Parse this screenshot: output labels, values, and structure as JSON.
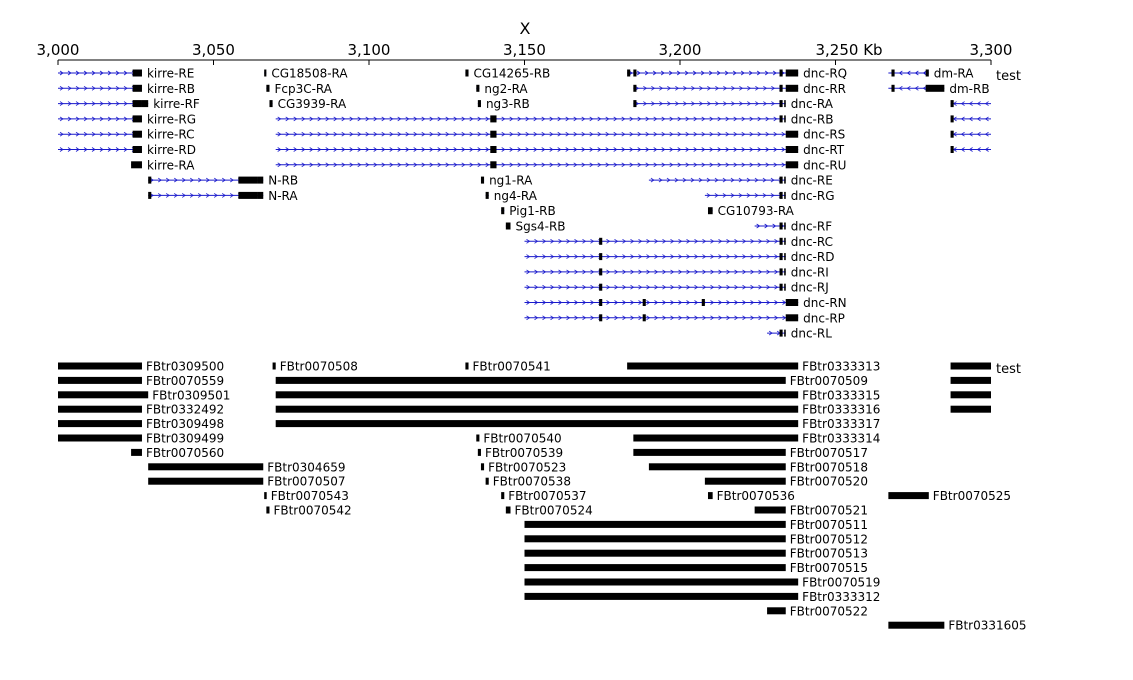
{
  "chromosome": "X",
  "axis": {
    "start_kb": 3000,
    "end_kb": 3300,
    "ticks": [
      {
        "kb": 3000,
        "label": "3,000"
      },
      {
        "kb": 3050,
        "label": "3,050"
      },
      {
        "kb": 3100,
        "label": "3,100"
      },
      {
        "kb": 3150,
        "label": "3,150"
      },
      {
        "kb": 3200,
        "label": "3,200"
      },
      {
        "kb": 3250,
        "label": "3,250 Kb"
      },
      {
        "kb": 3300,
        "label": "3,300"
      }
    ]
  },
  "colors": {
    "intron": "#1a1acc",
    "exon": "#000000",
    "text": "#000000"
  },
  "transcripts_track": {
    "label": "test",
    "features": [
      {
        "name": "kirre-RE",
        "row": 0,
        "start": 3000,
        "end": 3027,
        "strand": "+",
        "exons": [
          [
            3024,
            3027
          ]
        ]
      },
      {
        "name": "kirre-RB",
        "row": 1,
        "start": 3000,
        "end": 3027,
        "strand": "+",
        "exons": [
          [
            3024,
            3027
          ]
        ]
      },
      {
        "name": "kirre-RF",
        "row": 2,
        "start": 3000,
        "end": 3029,
        "strand": "+",
        "exons": [
          [
            3024,
            3027
          ],
          [
            3027,
            3029
          ]
        ]
      },
      {
        "name": "kirre-RG",
        "row": 3,
        "start": 3000,
        "end": 3027,
        "strand": "+",
        "exons": [
          [
            3024,
            3027
          ]
        ]
      },
      {
        "name": "kirre-RC",
        "row": 4,
        "start": 3000,
        "end": 3027,
        "strand": "+",
        "exons": [
          [
            3024,
            3027
          ]
        ]
      },
      {
        "name": "kirre-RD",
        "row": 5,
        "start": 3000,
        "end": 3027,
        "strand": "+",
        "exons": [
          [
            3024,
            3027
          ]
        ]
      },
      {
        "name": "kirre-RA",
        "row": 6,
        "start": 3023.5,
        "end": 3027,
        "strand": "",
        "exons": [
          [
            3023.5,
            3027
          ]
        ]
      },
      {
        "name": "N-RB",
        "row": 7,
        "start": 3029,
        "end": 3066,
        "strand": "+",
        "exons": [
          [
            3029,
            3030
          ],
          [
            3058,
            3064
          ],
          [
            3064,
            3066
          ]
        ]
      },
      {
        "name": "N-RA",
        "row": 8,
        "start": 3029,
        "end": 3066,
        "strand": "+",
        "exons": [
          [
            3029,
            3030
          ],
          [
            3058,
            3064
          ],
          [
            3064,
            3066
          ]
        ]
      },
      {
        "name": "CG18508-RA",
        "row": 0,
        "start": 3066.3,
        "end": 3067,
        "strand": "",
        "exons": [
          [
            3066.3,
            3067
          ]
        ]
      },
      {
        "name": "Fcp3C-RA",
        "row": 1,
        "start": 3067,
        "end": 3068,
        "strand": "",
        "exons": [
          [
            3067,
            3068
          ]
        ]
      },
      {
        "name": "CG3939-RA",
        "row": 2,
        "start": 3068,
        "end": 3069,
        "strand": "",
        "exons": [
          [
            3068,
            3069
          ]
        ]
      },
      {
        "name": "CG14265-RB",
        "row": 0,
        "start": 3131,
        "end": 3132,
        "strand": "",
        "exons": [
          [
            3131,
            3132
          ]
        ]
      },
      {
        "name": "ng2-RA",
        "row": 1,
        "start": 3134.5,
        "end": 3135.5,
        "strand": "",
        "exons": [
          [
            3134.5,
            3135.5
          ]
        ]
      },
      {
        "name": "ng3-RB",
        "row": 2,
        "start": 3135,
        "end": 3136,
        "strand": "",
        "exons": [
          [
            3135,
            3136
          ]
        ]
      },
      {
        "name": "ng1-RA",
        "row": 7,
        "start": 3136,
        "end": 3137,
        "strand": "",
        "exons": [
          [
            3136,
            3137
          ]
        ]
      },
      {
        "name": "ng4-RA",
        "row": 8,
        "start": 3137.5,
        "end": 3138.5,
        "strand": "",
        "exons": [
          [
            3137.5,
            3138.5
          ]
        ]
      },
      {
        "name": "Pig1-RB",
        "row": 9,
        "start": 3142.5,
        "end": 3143.5,
        "strand": "",
        "exons": [
          [
            3142.5,
            3143.5
          ]
        ]
      },
      {
        "name": "Sgs4-RB",
        "row": 10,
        "start": 3144,
        "end": 3145.5,
        "strand": "",
        "exons": [
          [
            3144,
            3145.5
          ]
        ]
      },
      {
        "name": "dnc-RQ",
        "row": 0,
        "start": 3183,
        "end": 3238,
        "strand": "+",
        "exons": [
          [
            3183,
            3184
          ],
          [
            3185,
            3186
          ],
          [
            3232,
            3233
          ],
          [
            3234,
            3238
          ]
        ]
      },
      {
        "name": "dnc-RR",
        "row": 1,
        "start": 3185,
        "end": 3238,
        "strand": "+",
        "exons": [
          [
            3185,
            3186
          ],
          [
            3232,
            3233
          ],
          [
            3234,
            3238
          ]
        ]
      },
      {
        "name": "dnc-RA",
        "row": 2,
        "start": 3185,
        "end": 3234,
        "strand": "+",
        "exons": [
          [
            3185,
            3186
          ],
          [
            3232,
            3233
          ],
          [
            3233.5,
            3234
          ]
        ]
      },
      {
        "name": "dnc-RB",
        "row": 3,
        "start": 3070,
        "end": 3234,
        "strand": "+",
        "exons": [
          [
            3139,
            3141
          ],
          [
            3232,
            3233
          ],
          [
            3233.5,
            3234
          ]
        ]
      },
      {
        "name": "dnc-RS",
        "row": 4,
        "start": 3070,
        "end": 3238,
        "strand": "+",
        "exons": [
          [
            3139,
            3141
          ],
          [
            3234,
            3238
          ]
        ]
      },
      {
        "name": "dnc-RT",
        "row": 5,
        "start": 3070,
        "end": 3238,
        "strand": "+",
        "exons": [
          [
            3139,
            3141
          ],
          [
            3234,
            3238
          ]
        ]
      },
      {
        "name": "dnc-RU",
        "row": 6,
        "start": 3070,
        "end": 3238,
        "strand": "+",
        "exons": [
          [
            3139,
            3141
          ],
          [
            3234,
            3238
          ]
        ]
      },
      {
        "name": "dnc-RE",
        "row": 7,
        "start": 3190,
        "end": 3234,
        "strand": "+",
        "exons": [
          [
            3232,
            3233
          ],
          [
            3233.5,
            3234
          ]
        ]
      },
      {
        "name": "dnc-RG",
        "row": 8,
        "start": 3208,
        "end": 3234,
        "strand": "+",
        "exons": [
          [
            3232,
            3233
          ],
          [
            3233.5,
            3234
          ]
        ]
      },
      {
        "name": "CG10793-RA",
        "row": 9,
        "start": 3209,
        "end": 3210.5,
        "strand": "",
        "exons": [
          [
            3209,
            3210.5
          ]
        ]
      },
      {
        "name": "dnc-RF",
        "row": 10,
        "start": 3224,
        "end": 3234,
        "strand": "+",
        "exons": [
          [
            3232,
            3233
          ],
          [
            3233.5,
            3234
          ]
        ]
      },
      {
        "name": "dnc-RC",
        "row": 11,
        "start": 3150,
        "end": 3234,
        "strand": "+",
        "exons": [
          [
            3174,
            3175
          ],
          [
            3232,
            3233
          ],
          [
            3233.5,
            3234
          ]
        ]
      },
      {
        "name": "dnc-RD",
        "row": 12,
        "start": 3150,
        "end": 3234,
        "strand": "+",
        "exons": [
          [
            3174,
            3175
          ],
          [
            3232,
            3233
          ],
          [
            3233.5,
            3234
          ]
        ]
      },
      {
        "name": "dnc-RI",
        "row": 13,
        "start": 3150,
        "end": 3234,
        "strand": "+",
        "exons": [
          [
            3174,
            3175
          ],
          [
            3232,
            3233
          ],
          [
            3233.5,
            3234
          ]
        ]
      },
      {
        "name": "dnc-RJ",
        "row": 14,
        "start": 3150,
        "end": 3234,
        "strand": "+",
        "exons": [
          [
            3174,
            3175
          ],
          [
            3232,
            3233
          ],
          [
            3233.5,
            3234
          ]
        ]
      },
      {
        "name": "dnc-RN",
        "row": 15,
        "start": 3150,
        "end": 3238,
        "strand": "+",
        "exons": [
          [
            3174,
            3175
          ],
          [
            3188,
            3189
          ],
          [
            3207,
            3208
          ],
          [
            3234,
            3238
          ]
        ]
      },
      {
        "name": "dnc-RP",
        "row": 16,
        "start": 3150,
        "end": 3238,
        "strand": "+",
        "exons": [
          [
            3174,
            3175
          ],
          [
            3188,
            3189
          ],
          [
            3234,
            3238
          ]
        ]
      },
      {
        "name": "dnc-RL",
        "row": 17,
        "start": 3228,
        "end": 3234,
        "strand": "+",
        "exons": [
          [
            3232,
            3233
          ],
          [
            3233.5,
            3234
          ]
        ]
      },
      {
        "name": "dm-RA",
        "row": 0,
        "start": 3267,
        "end": 3280,
        "strand": "-",
        "exons": [
          [
            3268,
            3269
          ],
          [
            3279,
            3280
          ]
        ]
      },
      {
        "name": "dm-RB",
        "row": 1,
        "start": 3267,
        "end": 3285,
        "strand": "-",
        "exons": [
          [
            3268,
            3269
          ],
          [
            3279,
            3285
          ]
        ]
      },
      {
        "name": "",
        "row": 2,
        "start": 3287,
        "end": 3300,
        "strand": "-",
        "exons": [
          [
            3287,
            3288
          ]
        ]
      },
      {
        "name": "",
        "row": 3,
        "start": 3287,
        "end": 3300,
        "strand": "-",
        "exons": [
          [
            3287,
            3288
          ]
        ]
      },
      {
        "name": "",
        "row": 4,
        "start": 3287,
        "end": 3300,
        "strand": "-",
        "exons": [
          [
            3287,
            3288
          ]
        ]
      },
      {
        "name": "",
        "row": 5,
        "start": 3287,
        "end": 3300,
        "strand": "-",
        "exons": [
          [
            3287,
            3288
          ]
        ]
      }
    ]
  },
  "ids_track": {
    "label": "test",
    "features": [
      {
        "name": "FBtr0309500",
        "row": 0,
        "start": 3000,
        "end": 3027
      },
      {
        "name": "FBtr0070559",
        "row": 1,
        "start": 3000,
        "end": 3027
      },
      {
        "name": "FBtr0309501",
        "row": 2,
        "start": 3000,
        "end": 3029
      },
      {
        "name": "FBtr0332492",
        "row": 3,
        "start": 3000,
        "end": 3027
      },
      {
        "name": "FBtr0309498",
        "row": 4,
        "start": 3000,
        "end": 3027
      },
      {
        "name": "FBtr0309499",
        "row": 5,
        "start": 3000,
        "end": 3027
      },
      {
        "name": "FBtr0070560",
        "row": 6,
        "start": 3023.5,
        "end": 3027
      },
      {
        "name": "FBtr0304659",
        "row": 7,
        "start": 3029,
        "end": 3066
      },
      {
        "name": "FBtr0070507",
        "row": 8,
        "start": 3029,
        "end": 3066
      },
      {
        "name": "FBtr0070543",
        "row": 9,
        "start": 3066.3,
        "end": 3067
      },
      {
        "name": "FBtr0070542",
        "row": 10,
        "start": 3067,
        "end": 3068
      },
      {
        "name": "FBtr0070508",
        "row": 0,
        "start": 3069,
        "end": 3070
      },
      {
        "name": "FBtr0070541",
        "row": 0,
        "start": 3131,
        "end": 3132
      },
      {
        "name": "FBtr0070540",
        "row": 5,
        "start": 3134.5,
        "end": 3135.5
      },
      {
        "name": "FBtr0070539",
        "row": 6,
        "start": 3135,
        "end": 3136
      },
      {
        "name": "FBtr0070523",
        "row": 7,
        "start": 3136,
        "end": 3137
      },
      {
        "name": "FBtr0070538",
        "row": 8,
        "start": 3137.5,
        "end": 3138.5
      },
      {
        "name": "FBtr0070537",
        "row": 9,
        "start": 3142.5,
        "end": 3143.5
      },
      {
        "name": "FBtr0070524",
        "row": 10,
        "start": 3144,
        "end": 3145.5
      },
      {
        "name": "FBtr0333313",
        "row": 0,
        "start": 3183,
        "end": 3238
      },
      {
        "name": "FBtr0070509",
        "row": 1,
        "start": 3070,
        "end": 3234
      },
      {
        "name": "FBtr0333315",
        "row": 2,
        "start": 3070,
        "end": 3238
      },
      {
        "name": "FBtr0333316",
        "row": 3,
        "start": 3070,
        "end": 3238
      },
      {
        "name": "FBtr0333317",
        "row": 4,
        "start": 3070,
        "end": 3238
      },
      {
        "name": "FBtr0333314",
        "row": 5,
        "start": 3185,
        "end": 3238
      },
      {
        "name": "FBtr0070517",
        "row": 6,
        "start": 3185,
        "end": 3234
      },
      {
        "name": "FBtr0070518",
        "row": 7,
        "start": 3190,
        "end": 3234
      },
      {
        "name": "FBtr0070520",
        "row": 8,
        "start": 3208,
        "end": 3234
      },
      {
        "name": "FBtr0070536",
        "row": 9,
        "start": 3209,
        "end": 3210.5
      },
      {
        "name": "FBtr0070521",
        "row": 10,
        "start": 3224,
        "end": 3234
      },
      {
        "name": "FBtr0070511",
        "row": 11,
        "start": 3150,
        "end": 3234
      },
      {
        "name": "FBtr0070512",
        "row": 12,
        "start": 3150,
        "end": 3234
      },
      {
        "name": "FBtr0070513",
        "row": 13,
        "start": 3150,
        "end": 3234
      },
      {
        "name": "FBtr0070515",
        "row": 14,
        "start": 3150,
        "end": 3234
      },
      {
        "name": "FBtr0070519",
        "row": 15,
        "start": 3150,
        "end": 3238
      },
      {
        "name": "FBtr0333312",
        "row": 16,
        "start": 3150,
        "end": 3238
      },
      {
        "name": "FBtr0070522",
        "row": 17,
        "start": 3228,
        "end": 3234
      },
      {
        "name": "FBtr0070525",
        "row": 9,
        "start": 3267,
        "end": 3280
      },
      {
        "name": "FBtr0331605",
        "row": 18,
        "start": 3267,
        "end": 3285
      },
      {
        "name": "",
        "row": 0,
        "start": 3287,
        "end": 3300
      },
      {
        "name": "",
        "row": 1,
        "start": 3287,
        "end": 3300
      },
      {
        "name": "",
        "row": 2,
        "start": 3287,
        "end": 3300
      },
      {
        "name": "",
        "row": 3,
        "start": 3287,
        "end": 3300
      }
    ]
  }
}
